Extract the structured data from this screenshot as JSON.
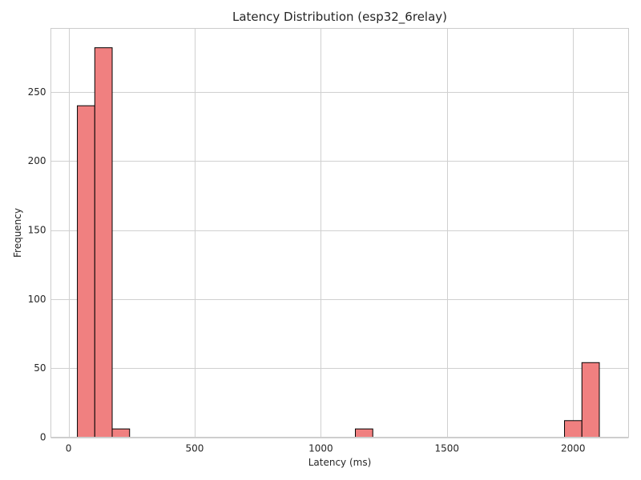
{
  "chart_data": {
    "type": "bar",
    "title": "Latency Distribution (esp32_6relay)",
    "xlabel": "Latency (ms)",
    "ylabel": "Frequency",
    "xlim": [
      -70,
      2220
    ],
    "ylim": [
      0,
      296
    ],
    "xticks": [
      0,
      500,
      1000,
      1500,
      2000
    ],
    "yticks": [
      0,
      50,
      100,
      150,
      200,
      250
    ],
    "grid": true,
    "bar_color": "#f08080",
    "edge_color": "#000000",
    "bins": [
      {
        "x0": 35,
        "x1": 104,
        "count": 240
      },
      {
        "x0": 104,
        "x1": 173,
        "count": 282
      },
      {
        "x0": 173,
        "x1": 242,
        "count": 6
      },
      {
        "x0": 1137,
        "x1": 1206,
        "count": 6
      },
      {
        "x0": 1966,
        "x1": 2035,
        "count": 12
      },
      {
        "x0": 2035,
        "x1": 2104,
        "count": 54
      }
    ]
  }
}
